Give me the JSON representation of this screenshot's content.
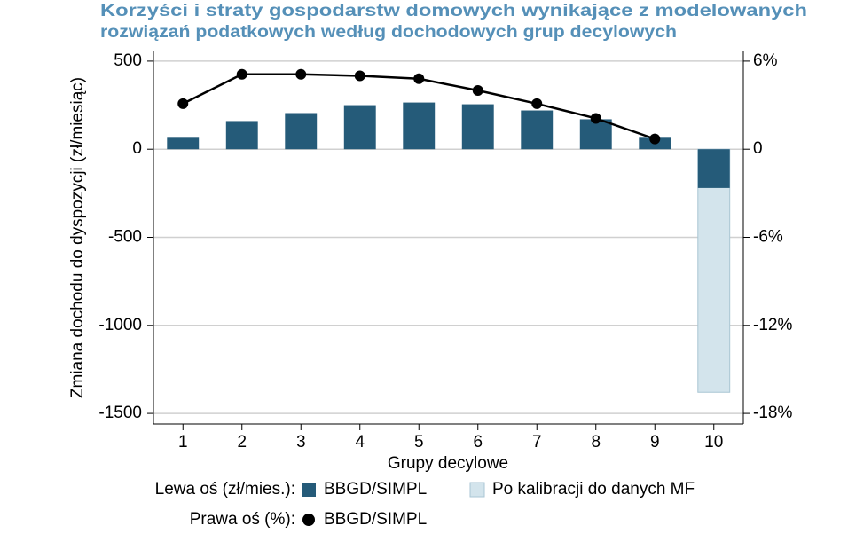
{
  "chart_data": {
    "type": "bar",
    "title": [
      "Korzyści i straty gospodarstw domowych wynikające z modelowanych",
      "rozwiązań podatkowych według dochodowych grup decylowych"
    ],
    "x_label": "Grupy decylowe",
    "y_label": "Zmiana dochodu do dyspozycji (zł/miesiąc)",
    "categories": [
      "1",
      "2",
      "3",
      "4",
      "5",
      "6",
      "7",
      "8",
      "9",
      "10"
    ],
    "series": [
      {
        "name": "Po kalibracji do danych MF",
        "type": "bar",
        "axis": "y",
        "color": "#d3e4ec",
        "values": [
          null,
          null,
          null,
          null,
          null,
          null,
          null,
          null,
          null,
          -1380
        ]
      },
      {
        "name": "BBGD/SIMPL",
        "type": "bar",
        "axis": "y",
        "color": "#255b79",
        "values": [
          65,
          160,
          205,
          250,
          265,
          255,
          220,
          170,
          65,
          -220
        ]
      },
      {
        "name": "BBGD/SIMPL",
        "type": "line",
        "axis": "y2",
        "color": "#000000",
        "values": [
          3.1,
          5.1,
          5.1,
          5.0,
          4.8,
          4.0,
          3.1,
          2.1,
          0.7,
          null
        ]
      }
    ],
    "legend_groups": [
      "Lewa oś (zł/mies.):",
      "Prawa oś (%):"
    ],
    "ylim": [
      -1560,
      560
    ],
    "yticks": [
      -1500,
      -1000,
      -500,
      0,
      500
    ],
    "y2lim": [
      -18.72,
      6.72
    ],
    "y2ticks": [
      {
        "value": -18,
        "label": "-18%"
      },
      {
        "value": -12,
        "label": "-12%"
      },
      {
        "value": -6,
        "label": "-6%"
      },
      {
        "value": 0,
        "label": "0"
      },
      {
        "value": 6,
        "label": "6%"
      }
    ],
    "grid": true
  }
}
